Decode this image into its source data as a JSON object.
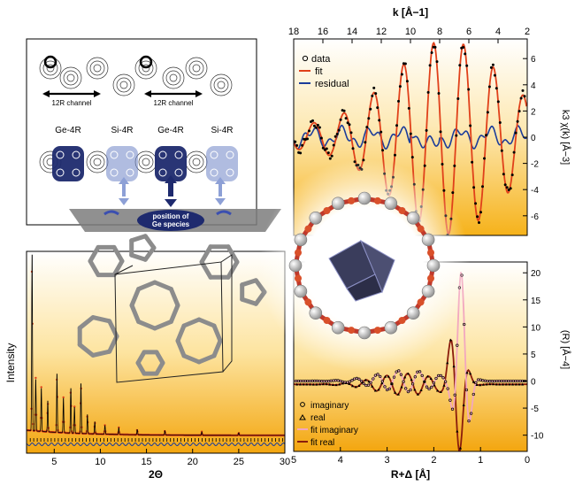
{
  "structure_map": {
    "channel_label_1": "12R channel",
    "channel_label_2": "12R channel",
    "ring_labels": [
      "Ge-4R",
      "Si-4R",
      "Ge-4R",
      "Si-4R"
    ],
    "banner": [
      "position of",
      "Ge species"
    ]
  },
  "colors": {
    "gold": "#f6b21a",
    "ge_blue": "#1e2a6e",
    "si_blue": "#6f85c6",
    "fit_red": "#e0401a",
    "residual_blue": "#1b3c9a",
    "fit_imag_pink": "#f2a7bf",
    "fit_real_brown": "#8a1c0c"
  },
  "chart_data": [
    {
      "type": "line",
      "name": "exafs-k-space",
      "xlabel": "k [Å−1]",
      "ylabel": "k3 χ(k) [Å−3]",
      "xlim": [
        18,
        2
      ],
      "ylim": [
        -7.5,
        7.5
      ],
      "x_ticks": [
        18,
        16,
        14,
        12,
        10,
        8,
        6,
        4,
        2
      ],
      "y_ticks": [
        6,
        4,
        2,
        0,
        -2,
        -4,
        -6
      ],
      "legend": [
        "data",
        "fit",
        "residual"
      ],
      "legend_position": "top-left",
      "series": [
        {
          "name": "data",
          "style": "open circles"
        },
        {
          "name": "fit",
          "style": "line"
        },
        {
          "name": "residual",
          "style": "line"
        }
      ]
    },
    {
      "type": "line",
      "name": "exafs-r-space",
      "xlabel": "R+Δ [Å]",
      "ylabel": "(R) [Å−4]",
      "xlim": [
        5,
        0
      ],
      "ylim": [
        -13,
        22
      ],
      "x_ticks": [
        5,
        4,
        3,
        2,
        1,
        0
      ],
      "y_ticks": [
        20,
        15,
        10,
        5,
        0,
        -5,
        -10
      ],
      "legend": [
        "imaginary",
        "real",
        "fit imaginary",
        "fit real"
      ],
      "legend_position": "bottom-left",
      "series": [
        {
          "name": "imaginary",
          "style": "open circles"
        },
        {
          "name": "real",
          "style": "triangles"
        },
        {
          "name": "fit imaginary",
          "style": "line"
        },
        {
          "name": "fit real",
          "style": "line"
        }
      ]
    },
    {
      "type": "line",
      "name": "powder-diffraction",
      "xlabel": "2Θ",
      "ylabel": "Intensity",
      "xlim": [
        2,
        30
      ],
      "x_ticks": [
        5,
        10,
        15,
        20,
        25,
        30
      ],
      "series": [
        {
          "name": "observed",
          "style": "red points"
        },
        {
          "name": "calculated",
          "style": "black line"
        },
        {
          "name": "difference",
          "style": "blue line"
        },
        {
          "name": "reflections",
          "style": "tick marks"
        }
      ]
    }
  ]
}
